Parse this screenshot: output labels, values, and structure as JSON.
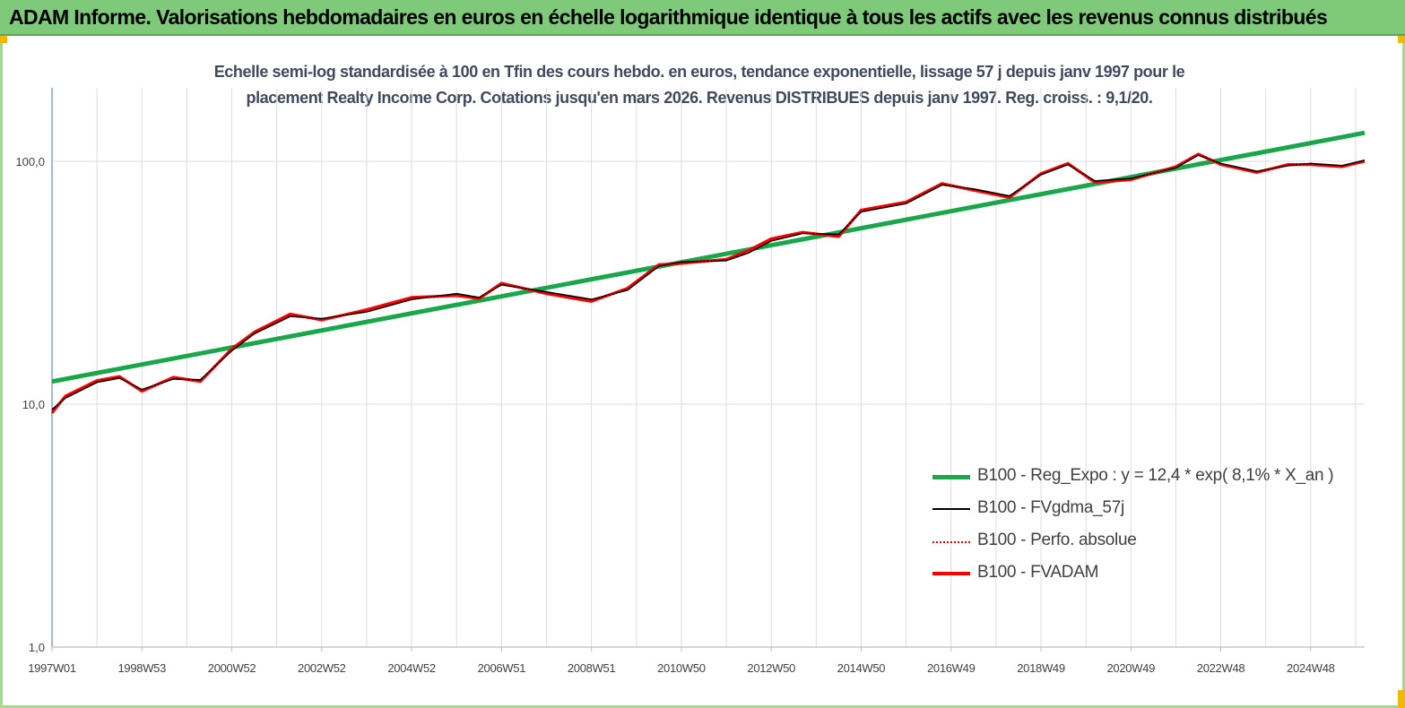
{
  "header": {
    "title": "ADAM Informe. Valorisations hebdomadaires en euros en échelle logarithmique identique à tous les actifs avec les revenus connus distribués"
  },
  "colors": {
    "banner": "#7fc97a",
    "trend": "#1aa64a",
    "fvgdma": "#000000",
    "perfo": "#e00000",
    "fvadam": "#ff0000",
    "grid": "#dcdcdc",
    "axis": "#5b8fd0"
  },
  "chart_data": {
    "type": "line",
    "title_line1": "Echelle semi-log standardisée à 100 en Tfin des cours hebdo. en euros, tendance exponentielle, lissage 57 j depuis janv 1997 pour le",
    "title_line2": "placement Realty Income Corp. Cotations jusqu'en mars 2026.  Revenus DISTRIBUES  depuis janv 1997. Reg. croiss. : 9,1/20.",
    "y_scale": "log",
    "ylim": [
      1,
      200
    ],
    "xlim": [
      1997.0,
      2026.2
    ],
    "y_ticks": [
      {
        "value": 1,
        "label": "1,0"
      },
      {
        "value": 10,
        "label": "10,0"
      },
      {
        "value": 100,
        "label": "100,0"
      }
    ],
    "x_ticks": [
      {
        "value": 1997.0,
        "label": "1997W01"
      },
      {
        "value": 1999.0,
        "label": "1998W53"
      },
      {
        "value": 2001.0,
        "label": "2000W52"
      },
      {
        "value": 2003.0,
        "label": "2002W52"
      },
      {
        "value": 2005.0,
        "label": "2004W52"
      },
      {
        "value": 2007.0,
        "label": "2006W51"
      },
      {
        "value": 2009.0,
        "label": "2008W51"
      },
      {
        "value": 2011.0,
        "label": "2010W50"
      },
      {
        "value": 2013.0,
        "label": "2012W50"
      },
      {
        "value": 2015.0,
        "label": "2014W50"
      },
      {
        "value": 2017.0,
        "label": "2016W49"
      },
      {
        "value": 2019.0,
        "label": "2018W49"
      },
      {
        "value": 2021.0,
        "label": "2020W49"
      },
      {
        "value": 2023.0,
        "label": "2022W48"
      },
      {
        "value": 2025.0,
        "label": "2024W48"
      }
    ],
    "grid": "vertical-yearly-and-horizontal-decades",
    "legend_position": "lower-right",
    "series": [
      {
        "name": "B100 - Reg_Expo : y = 12,4 * exp( 8,1% *  X_an )",
        "style": "thick-line",
        "x": [
          1997.0,
          2026.2
        ],
        "y": [
          12.4,
          131.0
        ]
      },
      {
        "name": "B100 - FVgdma_57j",
        "style": "thin-line",
        "x": [
          1997.0,
          1997.3,
          1998.0,
          1998.5,
          1999.0,
          1999.7,
          2000.3,
          2001.0,
          2001.5,
          2002.3,
          2003.0,
          2004.0,
          2005.0,
          2006.0,
          2006.5,
          2007.0,
          2008.0,
          2009.0,
          2009.8,
          2010.5,
          2011.0,
          2012.0,
          2012.5,
          2013.0,
          2013.7,
          2014.5,
          2015.0,
          2016.0,
          2016.8,
          2017.5,
          2018.3,
          2019.0,
          2019.6,
          2020.2,
          2021.0,
          2022.0,
          2022.5,
          2023.0,
          2023.8,
          2024.5,
          2025.0,
          2025.7,
          2026.2
        ],
        "y": [
          9.5,
          10.6,
          12.3,
          12.8,
          11.5,
          12.7,
          12.6,
          16.6,
          19.5,
          23.0,
          22.5,
          24.0,
          27.0,
          28.5,
          27.5,
          31.0,
          29.0,
          27.0,
          29.5,
          37.0,
          38.5,
          39.0,
          42.0,
          47.0,
          50.5,
          50.0,
          62.0,
          67.0,
          80.0,
          77.0,
          72.0,
          88.0,
          97.0,
          83.0,
          85.0,
          94.0,
          106.0,
          98.0,
          91.0,
          96.0,
          98.0,
          96.0,
          101.0
        ]
      },
      {
        "name": "B100 - Perfo. absolue",
        "style": "dotted-line",
        "x": [
          1997.0,
          1997.3,
          1998.0,
          1998.5,
          1999.0,
          1999.7,
          2000.3,
          2001.0,
          2001.5,
          2002.3,
          2003.0,
          2004.0,
          2005.0,
          2006.0,
          2006.5,
          2007.0,
          2008.0,
          2009.0,
          2009.8,
          2010.5,
          2011.0,
          2012.0,
          2012.5,
          2013.0,
          2013.7,
          2014.5,
          2015.0,
          2016.0,
          2016.8,
          2017.5,
          2018.3,
          2019.0,
          2019.6,
          2020.2,
          2021.0,
          2022.0,
          2022.5,
          2023.0,
          2023.8,
          2024.5,
          2025.0,
          2025.7,
          2026.2
        ],
        "y": [
          9.2,
          10.8,
          12.5,
          13.0,
          11.3,
          12.9,
          12.4,
          16.9,
          19.8,
          23.5,
          22.2,
          24.5,
          27.5,
          28.0,
          27.2,
          31.5,
          28.5,
          26.5,
          30.0,
          37.5,
          38.0,
          39.5,
          43.0,
          48.0,
          51.0,
          49.0,
          63.0,
          68.0,
          81.0,
          76.0,
          71.0,
          89.0,
          98.0,
          82.0,
          84.0,
          95.0,
          107.0,
          97.0,
          90.0,
          97.0,
          97.0,
          95.0,
          100.0
        ]
      },
      {
        "name": "B100 - FVADAM",
        "style": "thick-line",
        "x": [
          1997.0,
          1997.3,
          1998.0,
          1998.5,
          1999.0,
          1999.7,
          2000.3,
          2001.0,
          2001.5,
          2002.3,
          2003.0,
          2004.0,
          2005.0,
          2006.0,
          2006.5,
          2007.0,
          2008.0,
          2009.0,
          2009.8,
          2010.5,
          2011.0,
          2012.0,
          2012.5,
          2013.0,
          2013.7,
          2014.5,
          2015.0,
          2016.0,
          2016.8,
          2017.5,
          2018.3,
          2019.0,
          2019.6,
          2020.2,
          2021.0,
          2022.0,
          2022.5,
          2023.0,
          2023.8,
          2024.5,
          2025.0,
          2025.7,
          2026.2
        ],
        "y": [
          9.2,
          10.8,
          12.5,
          13.0,
          11.3,
          12.9,
          12.4,
          16.9,
          19.8,
          23.5,
          22.2,
          24.5,
          27.5,
          28.0,
          27.2,
          31.5,
          28.5,
          26.5,
          30.0,
          37.5,
          38.0,
          39.5,
          43.0,
          48.0,
          51.0,
          49.0,
          63.0,
          68.0,
          81.0,
          76.0,
          71.0,
          89.0,
          98.0,
          82.0,
          84.0,
          95.0,
          107.0,
          97.0,
          90.0,
          97.0,
          97.0,
          95.0,
          100.0
        ]
      }
    ]
  }
}
